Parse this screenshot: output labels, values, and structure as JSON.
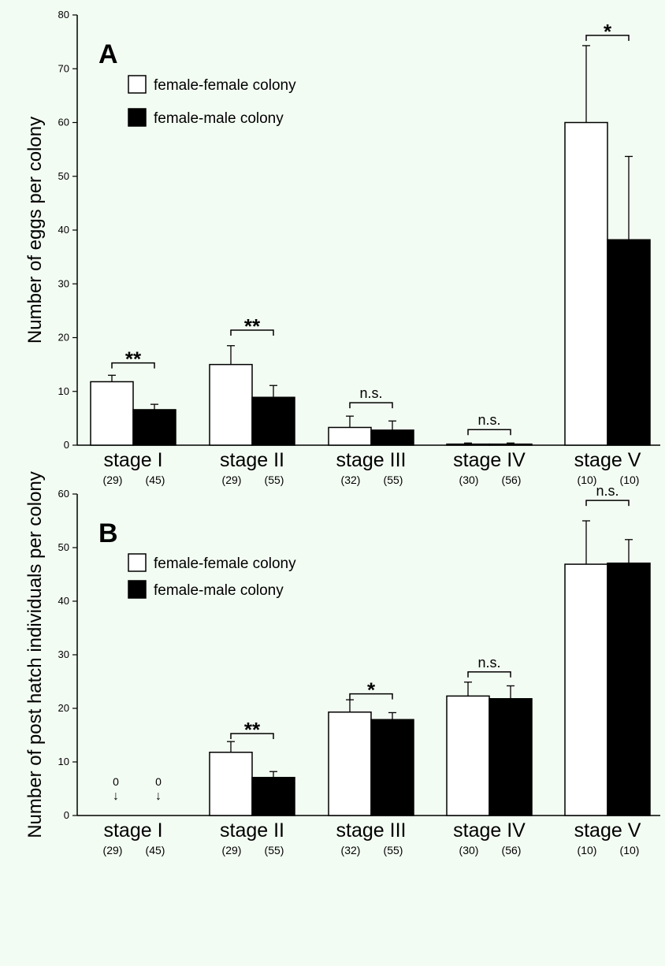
{
  "colors": {
    "background": "#f3fcf3",
    "female_female": "#ffffff",
    "female_male": "#000000",
    "axis": "#000000"
  },
  "chart_data": [
    {
      "type": "bar",
      "panel_label": "A",
      "ylabel": "Number of eggs per colony",
      "ylim": [
        0,
        80
      ],
      "yticks": [
        0,
        10,
        20,
        30,
        40,
        50,
        60,
        70,
        80
      ],
      "grid": false,
      "legend_position": "top-left",
      "categories": [
        "stage I",
        "stage II",
        "stage III",
        "stage IV",
        "stage V"
      ],
      "sample_sizes": [
        [
          "(29)",
          "(45)"
        ],
        [
          "(29)",
          "(55)"
        ],
        [
          "(32)",
          "(55)"
        ],
        [
          "(30)",
          "(56)"
        ],
        [
          "(10)",
          "(10)"
        ]
      ],
      "series": [
        {
          "name": "female-female colony",
          "color": "#ffffff",
          "values": [
            11.8,
            15.0,
            3.3,
            0.2,
            60.0
          ],
          "error": [
            1.2,
            3.5,
            2.1,
            0.2,
            14.3
          ]
        },
        {
          "name": "female-male colony",
          "color": "#000000",
          "values": [
            6.6,
            8.9,
            2.8,
            0.2,
            38.2
          ],
          "error": [
            1.0,
            2.2,
            1.7,
            0.2,
            15.5
          ]
        }
      ],
      "significance": [
        "**",
        "**",
        "n.s.",
        "n.s.",
        "*"
      ],
      "bracket_values": [
        15.3,
        21.4,
        7.9,
        2.9,
        76.2
      ],
      "annotations": []
    },
    {
      "type": "bar",
      "panel_label": "B",
      "ylabel": "Number of post hatch individuals per colony",
      "ylim": [
        0,
        60
      ],
      "yticks": [
        0,
        10,
        20,
        30,
        40,
        50,
        60
      ],
      "grid": false,
      "legend_position": "top-left",
      "categories": [
        "stage I",
        "stage II",
        "stage III",
        "stage IV",
        "stage V"
      ],
      "sample_sizes": [
        [
          "(29)",
          "(45)"
        ],
        [
          "(29)",
          "(55)"
        ],
        [
          "(32)",
          "(55)"
        ],
        [
          "(30)",
          "(56)"
        ],
        [
          "(10)",
          "(10)"
        ]
      ],
      "series": [
        {
          "name": "female-female colony",
          "color": "#ffffff",
          "values": [
            0,
            11.8,
            19.3,
            22.3,
            46.9
          ],
          "error": [
            0,
            2.0,
            2.3,
            2.6,
            8.1
          ]
        },
        {
          "name": "female-male colony",
          "color": "#000000",
          "values": [
            0,
            7.1,
            17.9,
            21.8,
            47.1
          ],
          "error": [
            0,
            1.1,
            1.3,
            2.4,
            4.4
          ]
        }
      ],
      "significance": [
        "",
        "**",
        "*",
        "n.s.",
        "n.s."
      ],
      "bracket_values": [
        null,
        15.3,
        22.7,
        26.8,
        58.8
      ],
      "annotations": [
        {
          "category_index": 0,
          "series_index": 0,
          "text": "0",
          "symbol": "↓"
        },
        {
          "category_index": 0,
          "series_index": 1,
          "text": "0",
          "symbol": "↓"
        }
      ]
    }
  ]
}
